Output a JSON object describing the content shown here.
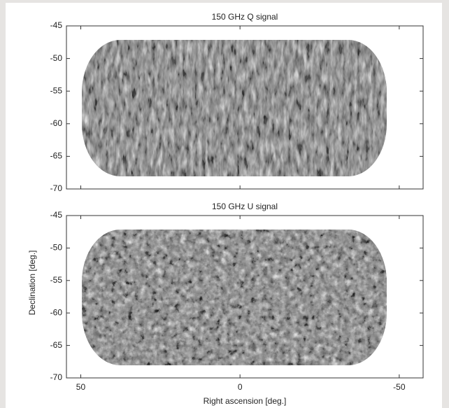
{
  "chart_data": [
    {
      "type": "image",
      "title": "150 GHz Q signal",
      "xlim": [
        54.5,
        -57.5
      ],
      "ylim": [
        -70,
        -45
      ],
      "xticks": [
        50,
        0,
        -50
      ],
      "yticks": [
        -45,
        -50,
        -55,
        -60,
        -65,
        -70
      ],
      "show_xtick_labels": false,
      "stripes": "vertical"
    },
    {
      "type": "image",
      "title": "150 GHz U signal",
      "xlim": [
        54.5,
        -57.5
      ],
      "ylim": [
        -70,
        -45
      ],
      "xticks": [
        50,
        0,
        -50
      ],
      "yticks": [
        -45,
        -50,
        -55,
        -60,
        -65,
        -70
      ],
      "show_xtick_labels": true,
      "stripes": "diagonal",
      "xlabel": "Right ascension [deg.]",
      "ylabel": "Declination [deg.]"
    }
  ]
}
